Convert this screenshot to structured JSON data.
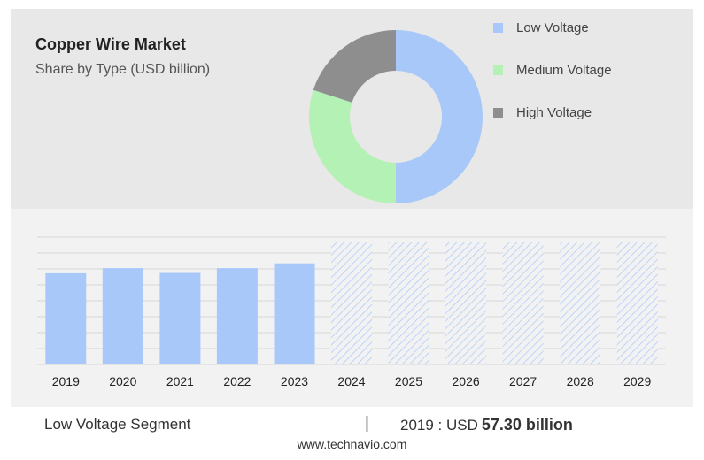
{
  "header": {
    "title": "Copper Wire Market",
    "subtitle": "Share by Type (USD billion)"
  },
  "colors": {
    "low_voltage": "#a8c8fa",
    "medium_voltage": "#b4f1b4",
    "high_voltage": "#8e8e8e",
    "forecast_hatch": "#a8c8fa",
    "grid": "#d6d6d6"
  },
  "chart_data": [
    {
      "type": "pie",
      "donut": true,
      "slices": [
        {
          "name": "Low Voltage",
          "value": 50
        },
        {
          "name": "Medium Voltage",
          "value": 30
        },
        {
          "name": "High Voltage",
          "value": 20
        }
      ],
      "legend": {
        "position": "right"
      }
    },
    {
      "type": "bar",
      "categories": [
        "2019",
        "2020",
        "2021",
        "2022",
        "2023",
        "2024",
        "2025",
        "2026",
        "2027",
        "2028",
        "2029"
      ],
      "values": [
        57.3,
        60.5,
        57.5,
        60.5,
        63.5,
        null,
        null,
        null,
        null,
        null,
        null
      ],
      "forecast_categories": [
        "2024",
        "2025",
        "2026",
        "2027",
        "2028",
        "2029"
      ],
      "ylim": [
        0,
        80
      ],
      "grid": true
    }
  ],
  "segment": {
    "label": "Low Voltage Segment",
    "divider": "|",
    "year_prefix": "2019 : USD",
    "value": "57.30 billion"
  },
  "source": "www.technavio.com"
}
